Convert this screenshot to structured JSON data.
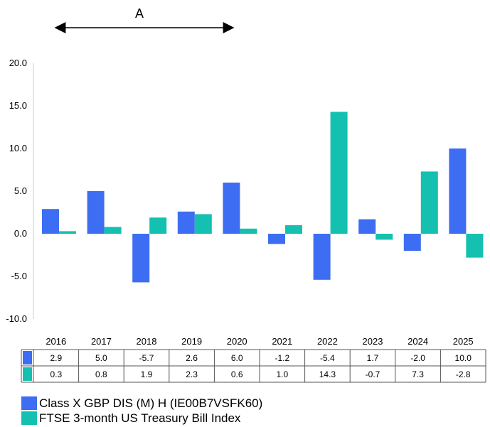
{
  "annotation": {
    "label": "A"
  },
  "chart_data": {
    "type": "bar",
    "categories": [
      "2016",
      "2017",
      "2018",
      "2019",
      "2020",
      "2021",
      "2022",
      "2023",
      "2024",
      "2025"
    ],
    "series": [
      {
        "name": "Class X GBP DIS (M) H (IE00B7VSFK60)",
        "color": "#3d6df2",
        "values": [
          2.9,
          5.0,
          -5.7,
          2.6,
          6.0,
          -1.2,
          -5.4,
          1.7,
          -2.0,
          10.0
        ],
        "labels": [
          "2.9",
          "5.0",
          "-5.7",
          "2.6",
          "6.0",
          "-1.2",
          "-5.4",
          "1.7",
          "-2.0",
          "10.0"
        ]
      },
      {
        "name": "FTSE 3-month US Treasury Bill Index",
        "color": "#14c0b0",
        "values": [
          0.3,
          0.8,
          1.9,
          2.3,
          0.6,
          1.0,
          14.3,
          -0.7,
          7.3,
          -2.8
        ],
        "labels": [
          "0.3",
          "0.8",
          "1.9",
          "2.3",
          "0.6",
          "1.0",
          "14.3",
          "-0.7",
          "7.3",
          "-2.8"
        ]
      }
    ],
    "yticks": [
      "20.0",
      "15.0",
      "10.0",
      "5.0",
      "0.0",
      "-5.0",
      "-10.0"
    ],
    "ytick_values": [
      20,
      15,
      10,
      5,
      0,
      -5,
      -10
    ],
    "ylim": [
      -10,
      20
    ],
    "grid": false,
    "legend_position": "bottom-left"
  }
}
